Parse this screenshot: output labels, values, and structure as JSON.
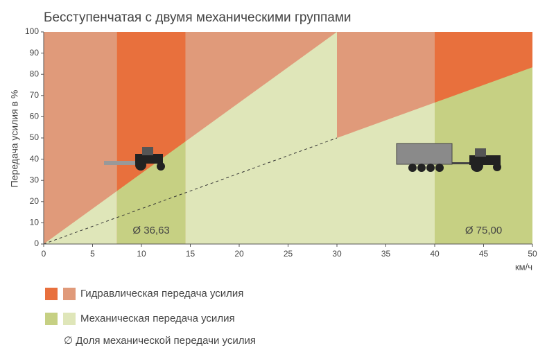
{
  "chart_data": {
    "type": "area",
    "title": "Бесступенчатая с двумя механическими группами",
    "y_label": "Передача усилия в %",
    "x_unit": "км/ч",
    "xlim": [
      0,
      50
    ],
    "ylim": [
      0,
      100
    ],
    "xticks": [
      0,
      5,
      10,
      15,
      20,
      25,
      30,
      35,
      40,
      45,
      50
    ],
    "yticks": [
      0,
      10,
      20,
      30,
      40,
      50,
      60,
      70,
      80,
      90,
      100
    ],
    "series": [
      {
        "name": "Гидравлическая передача усилия",
        "color": "#e09a7a",
        "highlight_color": "#e8703d"
      },
      {
        "name": "Механическая передача усилия",
        "color": "#dfe6b9",
        "highlight_color": "#c6d083",
        "x": [
          0,
          30,
          30,
          50
        ],
        "values": [
          0,
          100,
          50,
          83.3
        ]
      }
    ],
    "share_line": {
      "name": "∅ Доля механической передачи усилия",
      "color": "#333",
      "x": [
        0,
        30
      ],
      "values": [
        0,
        50
      ]
    },
    "bands": [
      {
        "x": [
          7.5,
          14.5
        ],
        "label": "Ø 36,63"
      },
      {
        "x": [
          40,
          50
        ],
        "label": "Ø 75,00"
      }
    ]
  }
}
